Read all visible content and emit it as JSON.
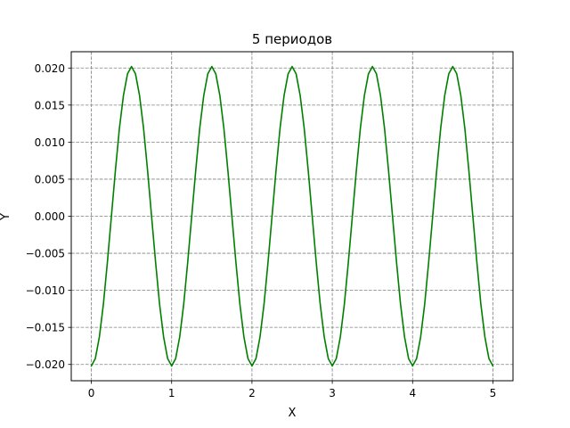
{
  "chart_data": {
    "type": "line",
    "title": "5 периодов",
    "xlabel": "X",
    "ylabel": "Y",
    "xlim": [
      -0.25,
      5.25
    ],
    "ylim": [
      -0.0222,
      0.0222
    ],
    "x_ticks": [
      0,
      1,
      2,
      3,
      4,
      5
    ],
    "x_tick_labels": [
      "0",
      "1",
      "2",
      "3",
      "4",
      "5"
    ],
    "y_ticks": [
      -0.02,
      -0.015,
      -0.01,
      -0.005,
      0.0,
      0.005,
      0.01,
      0.015,
      0.02
    ],
    "y_tick_labels": [
      "−0.020",
      "−0.015",
      "−0.010",
      "−0.005",
      "0.000",
      "0.005",
      "0.010",
      "0.015",
      "0.020"
    ],
    "grid": true,
    "grid_style": "dashed",
    "grid_color": "#808080",
    "series": [
      {
        "color": "#008000",
        "x": [
          0,
          0.05,
          0.1,
          0.15,
          0.2,
          0.25,
          0.3,
          0.35,
          0.4,
          0.45,
          0.5,
          0.55,
          0.6,
          0.65,
          0.7,
          0.75,
          0.8,
          0.85,
          0.9,
          0.95,
          1.0,
          1.05,
          1.1,
          1.15,
          1.2,
          1.25,
          1.3,
          1.35,
          1.4,
          1.45,
          1.5,
          1.55,
          1.6,
          1.65,
          1.7,
          1.75,
          1.8,
          1.85,
          1.9,
          1.95,
          2.0,
          2.05,
          2.1,
          2.15,
          2.2,
          2.25,
          2.3,
          2.35,
          2.4,
          2.45,
          2.5,
          2.55,
          2.6,
          2.65,
          2.7,
          2.75,
          2.8,
          2.85,
          2.9,
          2.95,
          3.0,
          3.05,
          3.1,
          3.15,
          3.2,
          3.25,
          3.3,
          3.35,
          3.4,
          3.45,
          3.5,
          3.55,
          3.6,
          3.65,
          3.7,
          3.75,
          3.8,
          3.85,
          3.9,
          3.95,
          4.0,
          4.05,
          4.1,
          4.15,
          4.2,
          4.25,
          4.3,
          4.35,
          4.4,
          4.45,
          4.5,
          4.55,
          4.6,
          4.65,
          4.7,
          4.75,
          4.8,
          4.85,
          4.9,
          4.95,
          5.0
        ],
        "y": [
          -0.0202,
          -0.0192,
          -0.0163,
          -0.0119,
          -0.0062,
          0.0,
          0.0062,
          0.0119,
          0.0163,
          0.0192,
          0.0202,
          0.0192,
          0.0163,
          0.0119,
          0.0062,
          0.0,
          -0.0062,
          -0.0119,
          -0.0163,
          -0.0192,
          -0.0202,
          -0.0192,
          -0.0163,
          -0.0119,
          -0.0062,
          0.0,
          0.0062,
          0.0119,
          0.0163,
          0.0192,
          0.0202,
          0.0192,
          0.0163,
          0.0119,
          0.0062,
          0.0,
          -0.0062,
          -0.0119,
          -0.0163,
          -0.0192,
          -0.0202,
          -0.0192,
          -0.0163,
          -0.0119,
          -0.0062,
          0.0,
          0.0062,
          0.0119,
          0.0163,
          0.0192,
          0.0202,
          0.0192,
          0.0163,
          0.0119,
          0.0062,
          0.0,
          -0.0062,
          -0.0119,
          -0.0163,
          -0.0192,
          -0.0202,
          -0.0192,
          -0.0163,
          -0.0119,
          -0.0062,
          0.0,
          0.0062,
          0.0119,
          0.0163,
          0.0192,
          0.0202,
          0.0192,
          0.0163,
          0.0119,
          0.0062,
          0.0,
          -0.0062,
          -0.0119,
          -0.0163,
          -0.0192,
          -0.0202,
          -0.0192,
          -0.0163,
          -0.0119,
          -0.0062,
          0.0,
          0.0062,
          0.0119,
          0.0163,
          0.0192,
          0.0202,
          0.0192,
          0.0163,
          0.0119,
          0.0062,
          0.0,
          -0.0062,
          -0.0119,
          -0.0163,
          -0.0192,
          -0.0202
        ]
      }
    ]
  }
}
